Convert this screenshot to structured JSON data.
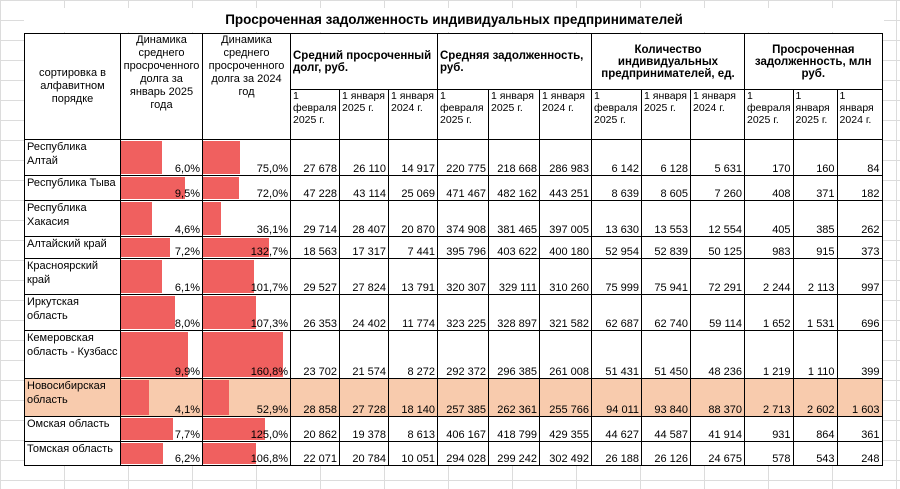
{
  "title": "Просроченная задолженность индивидуальных предпринимателей",
  "header": {
    "sort_label": "сортировка в алфавитном порядке",
    "dyn2025": "Динамика среднего просроченного долга за январь 2025 года",
    "dyn2024": "Динамика среднего просроченного долга за 2024 год",
    "group_overdue": "Средний просроченный долг, руб.",
    "group_debt": "Средняя задолженность, руб.",
    "group_count": "Количество индивидуальных предпринимателей, ед.",
    "group_total": "Просроченная задолженность, млн руб.",
    "date_feb2025": "1 февраля 2025 г.",
    "date_jan2025": "1 января 2025 г.",
    "date_jan2024": "1 января 2024 г."
  },
  "rows": [
    {
      "name": "Республика Алтай",
      "dyn2025": "6,0%",
      "dyn2025_v": 6.0,
      "dyn2024": "75,0%",
      "dyn2024_v": 75.0,
      "v": [
        "27 678",
        "26 110",
        "14 917",
        "220 775",
        "218 668",
        "286 983",
        "6 142",
        "6 128",
        "5 631",
        "170",
        "160",
        "84"
      ],
      "highlight": false
    },
    {
      "name": "Республика Тыва",
      "dyn2025": "9,5%",
      "dyn2025_v": 9.5,
      "dyn2024": "72,0%",
      "dyn2024_v": 72.0,
      "v": [
        "47 228",
        "43 114",
        "25 069",
        "471 467",
        "482 162",
        "443 251",
        "8 639",
        "8 605",
        "7 260",
        "408",
        "371",
        "182"
      ],
      "highlight": false
    },
    {
      "name": "Республика Хакасия",
      "dyn2025": "4,6%",
      "dyn2025_v": 4.6,
      "dyn2024": "36,1%",
      "dyn2024_v": 36.1,
      "v": [
        "29 714",
        "28 407",
        "20 870",
        "374 908",
        "381 465",
        "397 005",
        "13 630",
        "13 553",
        "12 554",
        "405",
        "385",
        "262"
      ],
      "highlight": false
    },
    {
      "name": "Алтайский край",
      "dyn2025": "7,2%",
      "dyn2025_v": 7.2,
      "dyn2024": "132,7%",
      "dyn2024_v": 132.7,
      "v": [
        "18 563",
        "17 317",
        "7 441",
        "395 796",
        "403 622",
        "400 180",
        "52 954",
        "52 839",
        "50 125",
        "983",
        "915",
        "373"
      ],
      "highlight": false
    },
    {
      "name": "Красноярский край",
      "dyn2025": "6,1%",
      "dyn2025_v": 6.1,
      "dyn2024": "101,7%",
      "dyn2024_v": 101.7,
      "v": [
        "29 527",
        "27 824",
        "13 791",
        "320 307",
        "329 111",
        "310 260",
        "75 999",
        "75 941",
        "72 291",
        "2 244",
        "2 113",
        "997"
      ],
      "highlight": false
    },
    {
      "name": "Иркутская область",
      "dyn2025": "8,0%",
      "dyn2025_v": 8.0,
      "dyn2024": "107,3%",
      "dyn2024_v": 107.3,
      "v": [
        "26 353",
        "24 402",
        "11 774",
        "323 225",
        "328 897",
        "321 582",
        "62 687",
        "62 740",
        "59 114",
        "1 652",
        "1 531",
        "696"
      ],
      "highlight": false
    },
    {
      "name": "Кемеровская область - Кузбасс",
      "dyn2025": "9,9%",
      "dyn2025_v": 9.9,
      "dyn2024": "160,8%",
      "dyn2024_v": 160.8,
      "v": [
        "23 702",
        "21 574",
        "8 272",
        "292 372",
        "296 385",
        "261 008",
        "51 431",
        "51 450",
        "48 236",
        "1 219",
        "1 110",
        "399"
      ],
      "highlight": false
    },
    {
      "name": "Новосибирская область",
      "dyn2025": "4,1%",
      "dyn2025_v": 4.1,
      "dyn2024": "52,9%",
      "dyn2024_v": 52.9,
      "v": [
        "28 858",
        "27 728",
        "18 140",
        "257 385",
        "262 361",
        "255 766",
        "94 011",
        "93 840",
        "88 370",
        "2 713",
        "2 602",
        "1 603"
      ],
      "highlight": true
    },
    {
      "name": "Омская область",
      "dyn2025": "7,7%",
      "dyn2025_v": 7.7,
      "dyn2024": "125,0%",
      "dyn2024_v": 125.0,
      "v": [
        "20 862",
        "19 378",
        "8 613",
        "406 167",
        "418 799",
        "429 355",
        "44 627",
        "44 587",
        "41 914",
        "931",
        "864",
        "361"
      ],
      "highlight": false
    },
    {
      "name": "Томская область",
      "dyn2025": "6,2%",
      "dyn2025_v": 6.2,
      "dyn2024": "106,8%",
      "dyn2024_v": 106.8,
      "v": [
        "22 071",
        "20 784",
        "10 051",
        "294 028",
        "299 242",
        "302 492",
        "26 188",
        "26 126",
        "24 675",
        "578",
        "543",
        "248"
      ],
      "highlight": false
    }
  ],
  "colors": {
    "bar": "#f0605f",
    "highlight": "#f8cbad"
  }
}
